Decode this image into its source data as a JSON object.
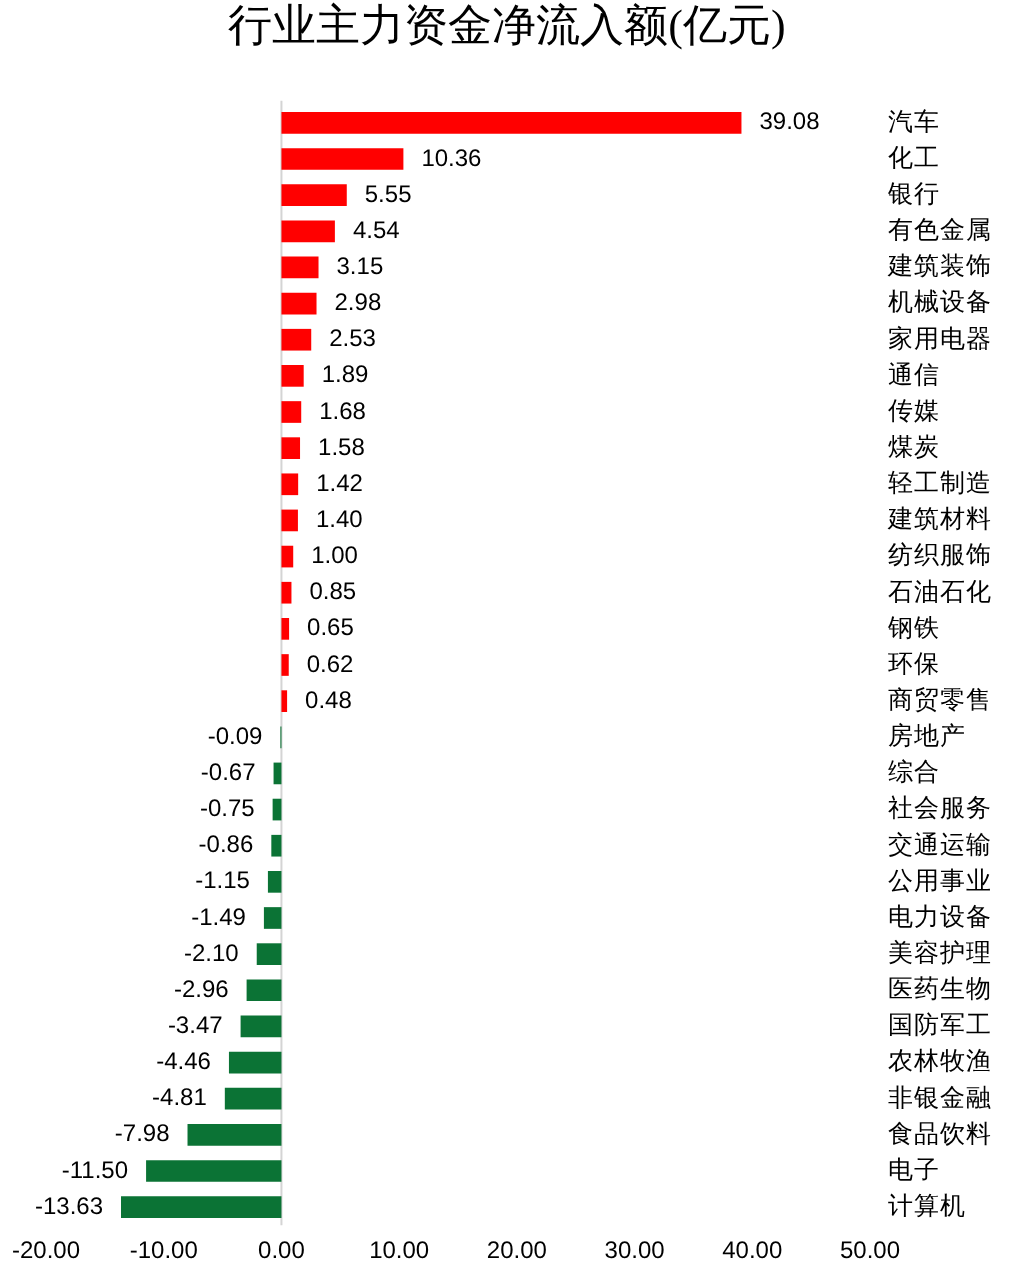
{
  "chart_data": {
    "type": "bar",
    "orientation": "horizontal",
    "title": "行业主力资金净流入额(亿元)",
    "categories": [
      "汽车",
      "化工",
      "银行",
      "有色金属",
      "建筑装饰",
      "机械设备",
      "家用电器",
      "通信",
      "传媒",
      "煤炭",
      "轻工制造",
      "建筑材料",
      "纺织服饰",
      "石油石化",
      "钢铁",
      "环保",
      "商贸零售",
      "房地产",
      "综合",
      "社会服务",
      "交通运输",
      "公用事业",
      "电力设备",
      "美容护理",
      "医药生物",
      "国防军工",
      "农林牧渔",
      "非银金融",
      "食品饮料",
      "电子",
      "计算机"
    ],
    "values": [
      39.08,
      10.36,
      5.55,
      4.54,
      3.15,
      2.98,
      2.53,
      1.89,
      1.68,
      1.58,
      1.42,
      1.4,
      1.0,
      0.85,
      0.65,
      0.62,
      0.48,
      -0.09,
      -0.67,
      -0.75,
      -0.86,
      -1.15,
      -1.49,
      -2.1,
      -2.96,
      -3.47,
      -4.46,
      -4.81,
      -7.98,
      -11.5,
      -13.63
    ],
    "value_labels": [
      "39.08",
      "10.36",
      "5.55",
      "4.54",
      "3.15",
      "2.98",
      "2.53",
      "1.89",
      "1.68",
      "1.58",
      "1.42",
      "1.40",
      "1.00",
      "0.85",
      "0.65",
      "0.62",
      "0.48",
      "-0.09",
      "-0.67",
      "-0.75",
      "-0.86",
      "-1.15",
      "-1.49",
      "-2.10",
      "-2.96",
      "-3.47",
      "-4.46",
      "-4.81",
      "-7.98",
      "-11.50",
      "-13.63"
    ],
    "colors": [
      "#ff0000",
      "#ff0000",
      "#ff0000",
      "#ff0000",
      "#ff0000",
      "#ff0000",
      "#ff0000",
      "#ff0000",
      "#ff0000",
      "#ff0000",
      "#ff0000",
      "#ff0000",
      "#ff0000",
      "#ff0000",
      "#ff0000",
      "#ff0000",
      "#ff0000",
      "#0b7335",
      "#0b7335",
      "#0b7335",
      "#0b7335",
      "#0b7335",
      "#0b7335",
      "#0b7335",
      "#0b7335",
      "#0b7335",
      "#0b7335",
      "#0b7335",
      "#0b7335",
      "#0b7335",
      "#0b7335"
    ],
    "xlim": [
      -20,
      50
    ],
    "xticks": [
      {
        "value": -20,
        "label": "-20.00"
      },
      {
        "value": -10,
        "label": "-10.00"
      },
      {
        "value": 0,
        "label": "0.00"
      },
      {
        "value": 10,
        "label": "10.00"
      },
      {
        "value": 20,
        "label": "20.00"
      },
      {
        "value": 30,
        "label": "30.00"
      },
      {
        "value": 40,
        "label": "40.00"
      },
      {
        "value": 50,
        "label": "50.00"
      }
    ]
  }
}
